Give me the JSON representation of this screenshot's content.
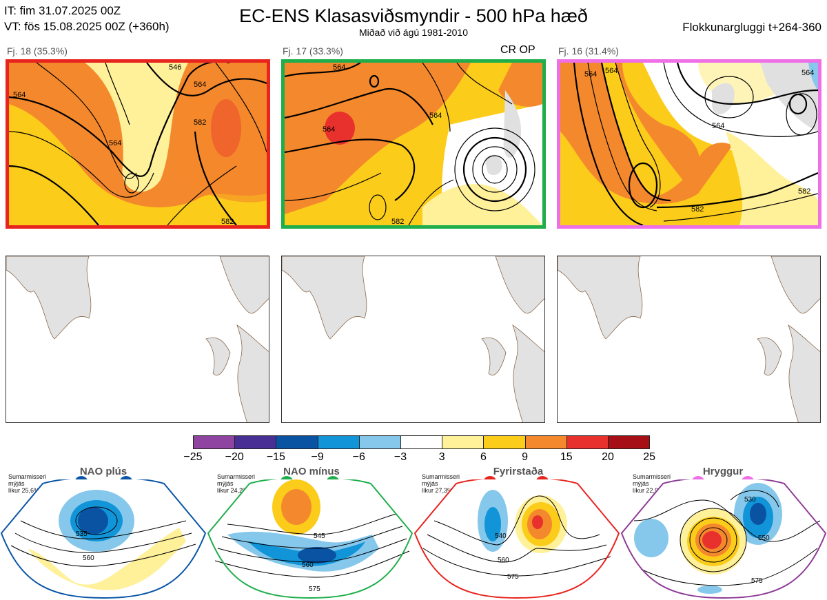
{
  "header": {
    "init_time": "IT: fim 31.07.2025 00Z",
    "valid_time": "VT: fös 15.08.2025 00Z  (+360h)",
    "title": "EC-ENS Klasasviðsmyndir - 500 hPa hæð",
    "subtitle": "Miðað við ágú 1981-2010",
    "window": "Flokkunargluggi t+264-360"
  },
  "clusters": [
    {
      "label": "Fj. 18 (35.3%)",
      "border_color": "#e8241e",
      "contours": [
        "564",
        "546",
        "564",
        "582",
        "564",
        "582"
      ]
    },
    {
      "label": "Fj. 17 (33.3%)",
      "border_color": "#1fae4b",
      "op_label": "CR OP",
      "contours": [
        "564",
        "564",
        "564",
        "582"
      ]
    },
    {
      "label": "Fj. 16 (31.4%)",
      "border_color": "#ee6fe6",
      "contours": [
        "564",
        "564",
        "564",
        "564",
        "582",
        "582"
      ]
    }
  ],
  "colorbar": {
    "ticks": [
      "−25",
      "−20",
      "−15",
      "−9",
      "−6",
      "−3",
      "3",
      "6",
      "9",
      "15",
      "20",
      "25"
    ],
    "colors": [
      "#8e44a0",
      "#472f96",
      "#0a52a2",
      "#1295d8",
      "#86c8ec",
      "#ffffff",
      "#fff09a",
      "#fccc1a",
      "#f4882c",
      "#e8302c",
      "#a50f15"
    ]
  },
  "regimes": [
    {
      "name": "NAO plús",
      "note": [
        "Sumarmisseri",
        "mýjás",
        "líkur 25,6%"
      ],
      "color": "#0b55a6",
      "edge": "#0b55a6",
      "contours": [
        "535",
        "560"
      ]
    },
    {
      "name": "NAO mínus",
      "note": [
        "Sumarmisseri",
        "mýjás",
        "líkur 24,2%"
      ],
      "color": "#1fae4b",
      "edge": "#1fae4b",
      "contours": [
        "545",
        "560",
        "575"
      ]
    },
    {
      "name": "Fyrirstaða",
      "note": [
        "Sumarmisseri",
        "mýjás",
        "líkur 27,3%"
      ],
      "color": "#e8241e",
      "edge": "#e8241e",
      "contours": [
        "540",
        "560",
        "575"
      ]
    },
    {
      "name": "Hryggur",
      "note": [
        "Sumarmisseri",
        "mýjás",
        "líkur 22,9%"
      ],
      "color": "#ee6fe6",
      "edge": "#8e3c96",
      "contours": [
        "530",
        "550",
        "575"
      ]
    }
  ]
}
